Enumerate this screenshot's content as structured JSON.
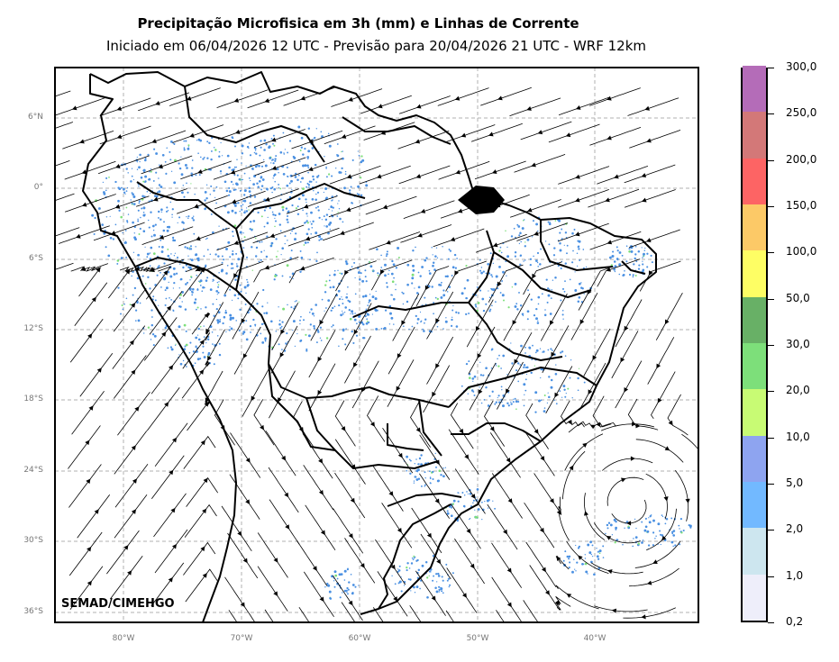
{
  "title": "Precipitação Microfisica em 3h (mm) e Linhas de Corrente",
  "subtitle": "Iniciado em 06/04/2026 12 UTC - Previsão para 20/04/2026 21 UTC - WRF 12km",
  "credit": "SEMAD/CIMEHGO",
  "lat_ticks": [
    "6°N",
    "0°",
    "6°S",
    "12°S",
    "18°S",
    "24°S",
    "30°S",
    "36°S"
  ],
  "lon_ticks": [
    "80°W",
    "70°W",
    "60°W",
    "50°W",
    "40°W"
  ],
  "colorbar": {
    "labels": [
      "0,2",
      "1,0",
      "2,0",
      "5,0",
      "10,0",
      "20,0",
      "30,0",
      "50,0",
      "100,0",
      "150,0",
      "200,0",
      "250,0",
      "300,0"
    ],
    "colors": [
      "#eeeefa",
      "#cde6ef",
      "#72b9ff",
      "#8ea4f0",
      "#c8fb74",
      "#7ddf7a",
      "#68b066",
      "#fefe64",
      "#fcc967",
      "#fd6464",
      "#d37878",
      "#b46cb8"
    ]
  },
  "colors": {
    "rain_light": "#4a90e2",
    "rain_moderate": "#7ddf7a",
    "streamline": "#000000",
    "grid": "#b0b0b0"
  }
}
